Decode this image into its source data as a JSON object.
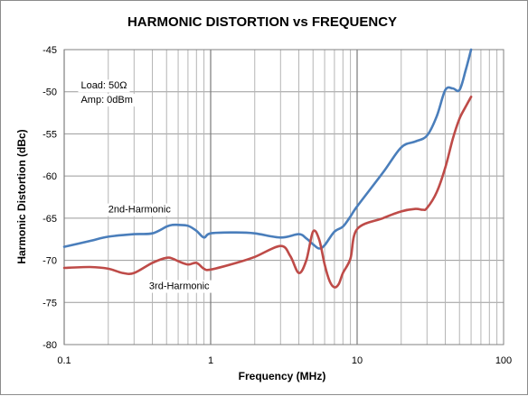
{
  "chart_data": {
    "type": "line",
    "title": "HARMONIC DISTORTION  vs  FREQUENCY",
    "xlabel": "Frequency (MHz)",
    "ylabel": "Harmonic Distortion (dBc)",
    "xscale": "log",
    "xlim": [
      0.1,
      100
    ],
    "ylim": [
      -80,
      -45
    ],
    "xticks": [
      0.1,
      1,
      10,
      100
    ],
    "xtick_labels": [
      "0.1",
      "1",
      "10",
      "100"
    ],
    "yticks": [
      -45,
      -50,
      -55,
      -60,
      -65,
      -70,
      -75,
      -80
    ],
    "ytick_labels": [
      "-45",
      "-50",
      "-55",
      "-60",
      "-65",
      "-70",
      "-75",
      "-80"
    ],
    "grid": true,
    "series": [
      {
        "name": "2nd-Harmonic",
        "color": "#4a7ebb",
        "x": [
          0.1,
          0.15,
          0.2,
          0.3,
          0.4,
          0.5,
          0.55,
          0.6,
          0.7,
          0.8,
          0.9,
          1.0,
          1.5,
          2.0,
          3.0,
          4.0,
          4.5,
          5.0,
          5.5,
          6.0,
          7.0,
          8.0,
          9.0,
          10,
          15,
          20,
          25,
          30,
          35,
          40,
          45,
          50,
          55,
          60
        ],
        "y": [
          -68.4,
          -67.7,
          -67.2,
          -66.9,
          -66.8,
          -66.0,
          -65.8,
          -65.8,
          -65.9,
          -66.5,
          -67.3,
          -66.8,
          -66.7,
          -66.8,
          -67.3,
          -66.9,
          -67.4,
          -68.1,
          -68.6,
          -68.2,
          -66.6,
          -66.0,
          -64.8,
          -63.6,
          -59.6,
          -56.6,
          -55.9,
          -55.2,
          -52.9,
          -49.8,
          -49.6,
          -49.8,
          -47.5,
          -45.0
        ]
      },
      {
        "name": "3rd-Harmonic",
        "color": "#be4b48",
        "x": [
          0.1,
          0.15,
          0.2,
          0.25,
          0.3,
          0.4,
          0.5,
          0.55,
          0.6,
          0.7,
          0.8,
          0.9,
          1.0,
          1.5,
          2.0,
          3.0,
          3.5,
          4.0,
          4.5,
          5.0,
          5.5,
          6.0,
          6.5,
          7.0,
          7.5,
          8.0,
          9.0,
          10,
          15,
          20,
          25,
          28,
          30,
          35,
          40,
          45,
          50,
          55,
          60
        ],
        "y": [
          -70.9,
          -70.8,
          -71.0,
          -71.5,
          -71.5,
          -70.3,
          -69.7,
          -69.8,
          -70.1,
          -70.5,
          -70.3,
          -71.0,
          -71.1,
          -70.3,
          -69.6,
          -68.3,
          -69.5,
          -71.5,
          -70.0,
          -66.6,
          -67.5,
          -70.5,
          -72.5,
          -73.2,
          -72.8,
          -71.5,
          -69.8,
          -66.3,
          -65.0,
          -64.2,
          -63.9,
          -64.0,
          -63.8,
          -61.9,
          -59.0,
          -55.6,
          -53.2,
          -51.8,
          -50.6
        ]
      }
    ],
    "annotations": [
      {
        "text": "Load: 50Ω",
        "x": 0.13,
        "y": -49.2
      },
      {
        "text": "Amp: 0dBm",
        "x": 0.13,
        "y": -50.9
      },
      {
        "text": "2nd-Harmonic",
        "x": 0.2,
        "y": -63.9
      },
      {
        "text": "3rd-Harmonic",
        "x": 0.38,
        "y": -73.0
      }
    ]
  },
  "colors": {
    "gridline": "#9a9a9a",
    "plot_border": "#808080",
    "series_2nd": "#4a7ebb",
    "series_3rd": "#be4b48"
  }
}
